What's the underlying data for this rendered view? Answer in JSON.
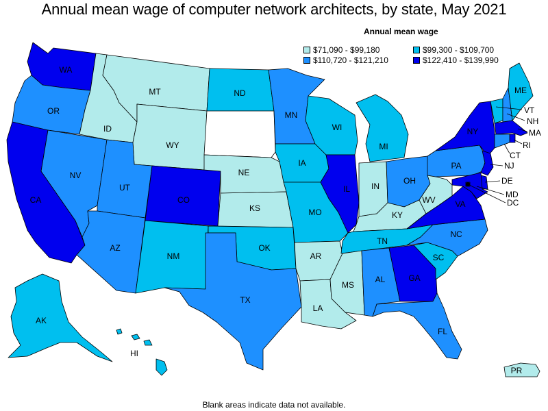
{
  "title": "Annual mean wage of computer network architects, by state, May 2021",
  "legend": {
    "title": "Annual mean wage",
    "items": [
      {
        "key": "c1",
        "label": "$71,090 - $99,180",
        "color": "#b2ebeb"
      },
      {
        "key": "c2",
        "label": "$99,300 - $109,700",
        "color": "#00bfef"
      },
      {
        "key": "c3",
        "label": "$110,720 - $121,210",
        "color": "#1e90ff"
      },
      {
        "key": "c4",
        "label": "$122,410 - $139,990",
        "color": "#0000ee"
      }
    ]
  },
  "footnote": "Blank areas indicate data not available.",
  "states": {
    "WA": "c4",
    "OR": "c3",
    "CA": "c4",
    "NV": "c3",
    "ID": "c1",
    "MT": "c1",
    "WY": "c1",
    "UT": "c3",
    "AZ": "c3",
    "CO": "c4",
    "NM": "c2",
    "ND": "c2",
    "SD": "none",
    "NE": "c1",
    "KS": "c1",
    "OK": "c2",
    "TX": "c3",
    "MN": "c3",
    "IA": "c2",
    "MO": "c2",
    "AR": "c1",
    "LA": "c1",
    "WI": "c2",
    "IL": "c4",
    "MI": "c2",
    "IN": "c1",
    "OH": "c3",
    "KY": "c1",
    "TN": "c2",
    "MS": "c1",
    "AL": "c3",
    "GA": "c4",
    "FL": "c3",
    "SC": "c2",
    "NC": "c3",
    "VA": "c4",
    "WV": "c1",
    "PA": "c3",
    "NY": "c4",
    "ME": "c2",
    "VT": "c2",
    "NH": "c3",
    "MA": "c4",
    "RI": "c4",
    "CT": "c3",
    "NJ": "c4",
    "DE": "c4",
    "MD": "c4",
    "DC": "c4",
    "AK": "c2",
    "HI": "c2",
    "PR": "c1"
  },
  "labels": {
    "WA": "WA",
    "OR": "OR",
    "CA": "CA",
    "NV": "NV",
    "ID": "ID",
    "MT": "MT",
    "WY": "WY",
    "UT": "UT",
    "AZ": "AZ",
    "CO": "CO",
    "NM": "NM",
    "ND": "ND",
    "NE": "NE",
    "KS": "KS",
    "OK": "OK",
    "TX": "TX",
    "MN": "MN",
    "IA": "IA",
    "MO": "MO",
    "AR": "AR",
    "LA": "LA",
    "WI": "WI",
    "IL": "IL",
    "MI": "MI",
    "IN": "IN",
    "OH": "OH",
    "KY": "KY",
    "TN": "TN",
    "MS": "MS",
    "AL": "AL",
    "GA": "GA",
    "FL": "FL",
    "SC": "SC",
    "NC": "NC",
    "VA": "VA",
    "WV": "WV",
    "PA": "PA",
    "NY": "NY",
    "ME": "ME",
    "VT": "VT",
    "NH": "NH",
    "MA": "MA",
    "RI": "RI",
    "CT": "CT",
    "NJ": "NJ",
    "DE": "DE",
    "MD": "MD",
    "DC": "DC",
    "AK": "AK",
    "HI": "HI",
    "PR": "PR"
  }
}
